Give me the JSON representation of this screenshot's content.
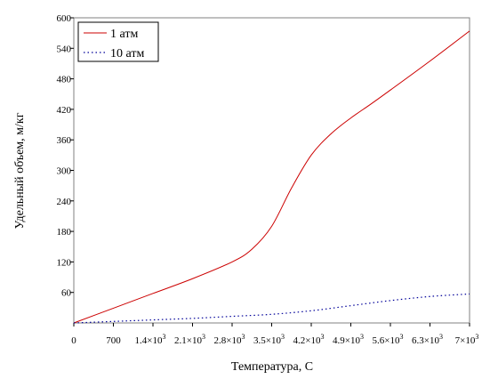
{
  "chart_data": {
    "type": "line",
    "title": "",
    "xlabel": "Температура, С",
    "ylabel": "Удельный объем, м/кг",
    "xlim": [
      0,
      7000
    ],
    "ylim": [
      0,
      600
    ],
    "x_ticks": [
      {
        "value": 0,
        "label": "0"
      },
      {
        "value": 700,
        "label": "700"
      },
      {
        "value": 1400,
        "label": "1.4×10",
        "exp": "3"
      },
      {
        "value": 2100,
        "label": "2.1×10",
        "exp": "3"
      },
      {
        "value": 2800,
        "label": "2.8×10",
        "exp": "3"
      },
      {
        "value": 3500,
        "label": "3.5×10",
        "exp": "3"
      },
      {
        "value": 4200,
        "label": "4.2×10",
        "exp": "3"
      },
      {
        "value": 4900,
        "label": "4.9×10",
        "exp": "3"
      },
      {
        "value": 5600,
        "label": "5.6×10",
        "exp": "3"
      },
      {
        "value": 6300,
        "label": "6.3×10",
        "exp": "3"
      },
      {
        "value": 7000,
        "label": "7×10",
        "exp": "3"
      }
    ],
    "y_ticks": [
      {
        "value": 60,
        "label": "60"
      },
      {
        "value": 120,
        "label": "120"
      },
      {
        "value": 180,
        "label": "180"
      },
      {
        "value": 240,
        "label": "240"
      },
      {
        "value": 300,
        "label": "300"
      },
      {
        "value": 360,
        "label": "360"
      },
      {
        "value": 420,
        "label": "420"
      },
      {
        "value": 480,
        "label": "480"
      },
      {
        "value": 540,
        "label": "540"
      },
      {
        "value": 600,
        "label": "600"
      }
    ],
    "legend_position": "top-left",
    "grid": false,
    "series": [
      {
        "name": "1 атм",
        "color": "#cc0000",
        "style": "solid",
        "x": [
          0,
          700,
          1400,
          2100,
          2800,
          3150,
          3500,
          3850,
          4200,
          4550,
          4900,
          5250,
          5600,
          6300,
          7000
        ],
        "y": [
          0,
          29,
          58,
          87,
          120,
          145,
          190,
          265,
          330,
          372,
          403,
          430,
          458,
          515,
          574
        ]
      },
      {
        "name": "10 атм",
        "color": "#000099",
        "style": "dotted",
        "x": [
          0,
          700,
          1400,
          2100,
          2800,
          3500,
          4200,
          4900,
          5600,
          6300,
          7000
        ],
        "y": [
          0,
          3,
          6,
          9,
          13,
          17,
          24,
          34,
          44,
          52,
          57
        ]
      }
    ]
  }
}
